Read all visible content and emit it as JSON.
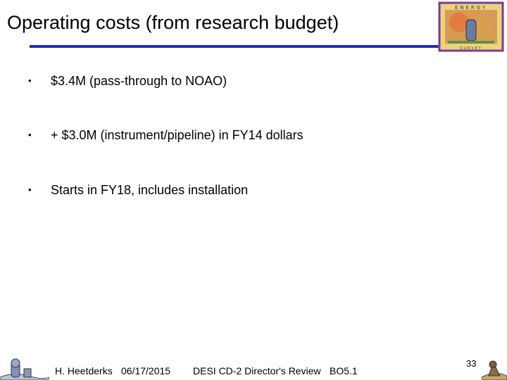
{
  "slide": {
    "title": "Operating costs (from research budget)",
    "bullets": [
      "$3.4M (pass-through to NOAO)",
      "+ $3.0M (instrument/pipeline) in FY14 dollars",
      "Starts in FY18, includes installation"
    ],
    "bullet_marker": "•",
    "footer": {
      "author": "H. Heetderks",
      "date": "06/17/2015",
      "event": "DESI CD-2 Director's Review",
      "code": "BO5.1"
    },
    "page_number": "33",
    "logo_letters": "ENERGY"
  }
}
